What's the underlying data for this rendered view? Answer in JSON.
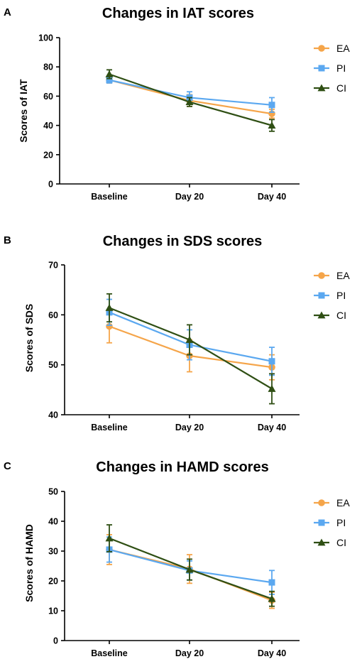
{
  "chart_data": [
    {
      "panel": "A",
      "type": "line",
      "title": "Changes in IAT scores",
      "ylabel": "Scores of IAT",
      "xlabel": "",
      "categories": [
        "Baseline",
        "Day 20",
        "Day 40"
      ],
      "ylim": [
        0,
        100
      ],
      "yticks": [
        0,
        20,
        40,
        60,
        80,
        100
      ],
      "grid": false,
      "legend": "top-right",
      "series": [
        {
          "name": "EA",
          "color": "#F5A54A",
          "marker": "circle",
          "values": [
            71,
            57,
            48
          ],
          "errors": [
            2,
            4,
            3
          ]
        },
        {
          "name": "PI",
          "color": "#5BA8F0",
          "marker": "square",
          "values": [
            71,
            59,
            54
          ],
          "errors": [
            2,
            4,
            5
          ]
        },
        {
          "name": "CI",
          "color": "#2F4F14",
          "marker": "triangle",
          "values": [
            75,
            56,
            40
          ],
          "errors": [
            3,
            3,
            4
          ]
        }
      ]
    },
    {
      "panel": "B",
      "type": "line",
      "title": "Changes in SDS scores",
      "ylabel": "Scores of SDS",
      "xlabel": "",
      "categories": [
        "Baseline",
        "Day 20",
        "Day 40"
      ],
      "ylim": [
        40,
        70
      ],
      "yticks": [
        40,
        50,
        60,
        70
      ],
      "grid": false,
      "legend": "top-right",
      "series": [
        {
          "name": "EA",
          "color": "#F5A54A",
          "marker": "circle",
          "values": [
            57.7,
            51.8,
            49.5
          ],
          "errors": [
            3.3,
            3.2,
            2.5
          ]
        },
        {
          "name": "PI",
          "color": "#5BA8F0",
          "marker": "square",
          "values": [
            60.5,
            54,
            50.7
          ],
          "errors": [
            2.6,
            3,
            2.8
          ]
        },
        {
          "name": "CI",
          "color": "#2F4F14",
          "marker": "triangle",
          "values": [
            61.4,
            55,
            45.2
          ],
          "errors": [
            2.8,
            3,
            3
          ]
        }
      ]
    },
    {
      "panel": "C",
      "type": "line",
      "title": "Changes in HAMD scores",
      "ylabel": "Scores of HAMD",
      "xlabel": "",
      "categories": [
        "Baseline",
        "Day 20",
        "Day 40"
      ],
      "ylim": [
        0,
        50
      ],
      "yticks": [
        0,
        10,
        20,
        30,
        40,
        50
      ],
      "grid": false,
      "legend": "top-right",
      "series": [
        {
          "name": "EA",
          "color": "#F5A54A",
          "marker": "circle",
          "values": [
            30.5,
            24,
            13.5
          ],
          "errors": [
            5,
            4.8,
            2.7
          ]
        },
        {
          "name": "PI",
          "color": "#5BA8F0",
          "marker": "square",
          "values": [
            30.5,
            23.5,
            19.5
          ],
          "errors": [
            4.2,
            3.2,
            4
          ]
        },
        {
          "name": "CI",
          "color": "#2F4F14",
          "marker": "triangle",
          "values": [
            34.3,
            23.8,
            14
          ],
          "errors": [
            4.5,
            3.5,
            2.5
          ]
        }
      ]
    }
  ]
}
